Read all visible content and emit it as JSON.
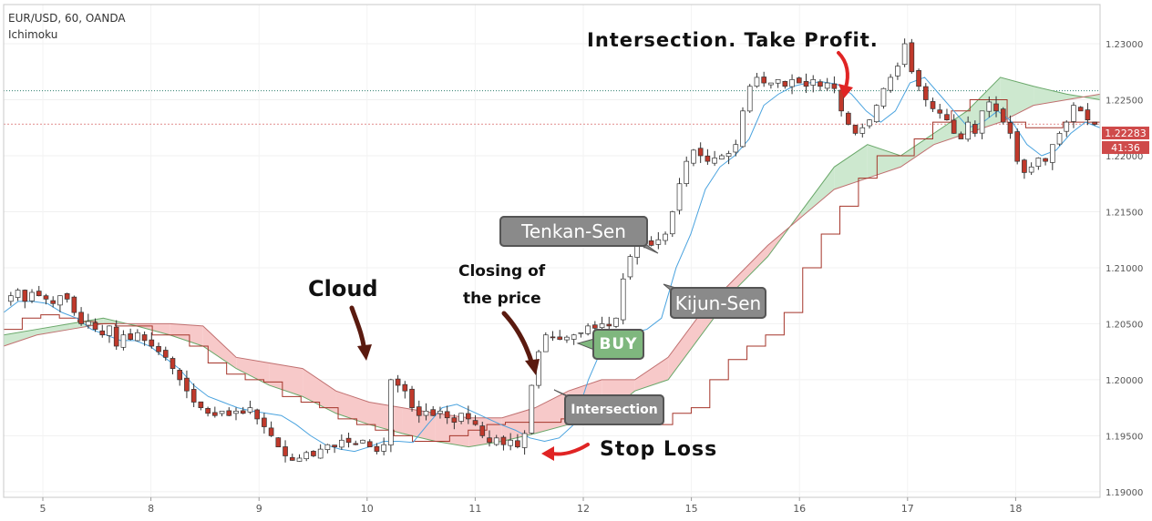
{
  "header": {
    "symbol_line": "EUR/USD, 60, OANDA",
    "indicator": "Ichimoku"
  },
  "annotations": {
    "take_profit": "Intersection. Take Profit.",
    "cloud": "Cloud",
    "closing_line1": "Closing of",
    "closing_line2": "the price",
    "stop_loss": "Stop Loss",
    "tenkan": "Tenkan-Sen",
    "kijun": "Kijun-Sen",
    "buy": "BUY",
    "intersection": "Intersection"
  },
  "price_labels": {
    "last": "1.22283",
    "countdown": "41:36"
  },
  "colors": {
    "bull": "#2f9e7e",
    "bear": "#c0392b",
    "candle": "#333333",
    "tenkan": "#4aa3df",
    "kijun": "#a5352a",
    "cloud_bull": "#cde8cf",
    "cloud_bear": "#f7c9c9",
    "buy_box": "#7fb77e",
    "callout_box": "#8a8a8a",
    "arrow_red": "#e02424",
    "arrow_brown": "#5a1a0f"
  },
  "chart_data": {
    "type": "candlestick",
    "symbol": "EUR/USD",
    "interval": "60",
    "source": "OANDA",
    "y_ticks": [
      1.19,
      1.195,
      1.2,
      1.205,
      1.21,
      1.215,
      1.22,
      1.225,
      1.23
    ],
    "y_tick_labels": [
      "1.19000",
      "1.19500",
      "1.20000",
      "1.20500",
      "1.21000",
      "1.21500",
      "1.22000",
      "1.22500",
      "1.23000"
    ],
    "ylim": [
      1.1895,
      1.2335
    ],
    "x_ticks": [
      "5",
      "8",
      "9",
      "10",
      "11",
      "12",
      "15",
      "16",
      "17",
      "18"
    ],
    "last_price": 1.22283,
    "dotted_level": 1.2258,
    "close_series": [
      1.2075,
      1.208,
      1.207,
      1.2078,
      1.2075,
      1.2072,
      1.2068,
      1.2075,
      1.2072,
      1.206,
      1.205,
      1.2052,
      1.2045,
      1.204,
      1.2048,
      1.203,
      1.204,
      1.2036,
      1.2042,
      1.2035,
      1.203,
      1.2025,
      1.202,
      1.201,
      1.2,
      1.199,
      1.198,
      1.1975,
      1.197,
      1.1968,
      1.1972,
      1.1968,
      1.1972,
      1.197,
      1.1975,
      1.1965,
      1.1958,
      1.195,
      1.194,
      1.1932,
      1.1928,
      1.193,
      1.1935,
      1.1932,
      1.1938,
      1.1942,
      1.194,
      1.1946,
      1.1944,
      1.1942,
      1.1946,
      1.194,
      1.1936,
      1.1942,
      1.2,
      1.1995,
      1.199,
      1.1975,
      1.1968,
      1.1972,
      1.1968,
      1.1972,
      1.1966,
      1.1962,
      1.197,
      1.1965,
      1.196,
      1.195,
      1.1944,
      1.1948,
      1.1942,
      1.1946,
      1.194,
      1.1952,
      1.1995,
      1.2025,
      1.204,
      1.2038,
      1.2036,
      1.2038,
      1.204,
      1.2042,
      1.2048,
      1.2046,
      1.205,
      1.2048,
      1.2055,
      1.209,
      1.211,
      1.2122,
      1.2125,
      1.212,
      1.2125,
      1.213,
      1.215,
      1.2175,
      1.2195,
      1.2205,
      1.22,
      1.2195,
      1.2198,
      1.22,
      1.2202,
      1.221,
      1.224,
      1.2262,
      1.227,
      1.2265,
      1.2265,
      1.2268,
      1.2262,
      1.2268,
      1.2265,
      1.2262,
      1.2268,
      1.2262,
      1.2265,
      1.226,
      1.224,
      1.2228,
      1.222,
      1.2225,
      1.2232,
      1.2245,
      1.226,
      1.227,
      1.228,
      1.23,
      1.2275,
      1.2262,
      1.225,
      1.2242,
      1.2238,
      1.2232,
      1.222,
      1.2215,
      1.223,
      1.222,
      1.224,
      1.2248,
      1.224,
      1.223,
      1.222,
      1.2195,
      1.2185,
      1.219,
      1.2198,
      1.2195,
      1.221,
      1.222,
      1.223,
      1.2245,
      1.224,
      1.2232,
      1.2228
    ],
    "tenkan_series": [
      1.206,
      1.207,
      1.207,
      1.2068,
      1.206,
      1.2055,
      1.2045,
      1.204,
      1.2035,
      1.2035,
      1.203,
      1.202,
      1.201,
      1.1995,
      1.1985,
      1.198,
      1.1975,
      1.1972,
      1.197,
      1.1968,
      1.196,
      1.195,
      1.1942,
      1.1938,
      1.1936,
      1.194,
      1.1945,
      1.1945,
      1.1944,
      1.196,
      1.1975,
      1.1978,
      1.1972,
      1.1966,
      1.196,
      1.1955,
      1.1948,
      1.1945,
      1.1948,
      1.196,
      1.2,
      1.203,
      1.204,
      1.2042,
      1.2045,
      1.2055,
      1.21,
      1.213,
      1.217,
      1.219,
      1.22,
      1.2215,
      1.2245,
      1.2255,
      1.2262,
      1.2265,
      1.2266,
      1.2264,
      1.2255,
      1.224,
      1.223,
      1.224,
      1.2265,
      1.227,
      1.2255,
      1.224,
      1.2225,
      1.223,
      1.224,
      1.223,
      1.221,
      1.22,
      1.2205,
      1.222,
      1.223,
      1.2225
    ],
    "kijun_series": [
      1.2045,
      1.2055,
      1.2058,
      1.2055,
      1.2052,
      1.205,
      1.2048,
      1.2048,
      1.204,
      1.204,
      1.203,
      1.2015,
      1.2005,
      1.2,
      1.1998,
      1.1985,
      1.198,
      1.1975,
      1.1965,
      1.196,
      1.1955,
      1.195,
      1.1945,
      1.1945,
      1.195,
      1.1955,
      1.196,
      1.1962,
      1.1962,
      1.1962,
      1.1965,
      1.1965,
      1.1962,
      1.196,
      1.196,
      1.196,
      1.197,
      1.1975,
      1.2,
      1.2018,
      1.203,
      1.204,
      1.206,
      1.21,
      1.213,
      1.2155,
      1.218,
      1.22,
      1.22,
      1.2215,
      1.223,
      1.224,
      1.225,
      1.225,
      1.223,
      1.2225,
      1.2225,
      1.223,
      1.223,
      1.223
    ],
    "cloud_span_a": [
      1.204,
      1.2045,
      1.205,
      1.2055,
      1.2048,
      1.204,
      1.203,
      1.201,
      1.1995,
      1.1985,
      1.197,
      1.196,
      1.1952,
      1.1945,
      1.194,
      1.1945,
      1.1952,
      1.196,
      1.1966,
      1.199,
      1.2,
      1.204,
      1.208,
      1.211,
      1.215,
      1.219,
      1.221,
      1.22,
      1.222,
      1.224,
      1.227,
      1.2262,
      1.2255,
      1.225
    ],
    "cloud_span_b": [
      1.203,
      1.204,
      1.2045,
      1.205,
      1.205,
      1.205,
      1.2048,
      1.202,
      1.2015,
      1.201,
      1.199,
      1.198,
      1.1975,
      1.197,
      1.1966,
      1.1966,
      1.1975,
      1.199,
      1.2,
      1.2,
      1.202,
      1.206,
      1.209,
      1.212,
      1.2145,
      1.217,
      1.218,
      1.219,
      1.221,
      1.222,
      1.223,
      1.2245,
      1.225,
      1.2255
    ]
  }
}
